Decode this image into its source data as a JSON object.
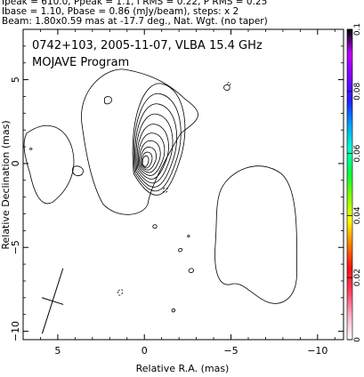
{
  "header": {
    "line1": "Ipeak = 610.0, Ppeak = 1.1, I RMS = 0.22, P RMS = 0.25",
    "line2": "Ibase = 1.10, Pbase = 0.86 (mJy/beam), steps: x 2",
    "line3": "Beam: 1.80x0.59 mas at -17.7 deg., Nat. Wgt. (no taper)"
  },
  "plot_title": "0742+103, 2005-11-07, VLBA 15.4 GHz",
  "program": "MOJAVE Program",
  "chart_data": {
    "type": "contour",
    "xlabel": "Relative R.A. (mas)",
    "ylabel": "Relative Declination (mas)",
    "xlim": [
      7,
      -11.5
    ],
    "ylim": [
      -10.5,
      8
    ],
    "x_ticks": [
      5,
      0,
      -5,
      -10
    ],
    "y_ticks": [
      5,
      0,
      -5,
      -10
    ],
    "colorbar": {
      "min": 0,
      "max": 0.1,
      "ticks": [
        "0",
        "0.02",
        "0.04",
        "0.06",
        "0.08",
        "0.1"
      ],
      "tick_values": [
        0,
        0.02,
        0.04,
        0.06,
        0.08,
        0.1
      ],
      "colors": [
        "#ffffff",
        "#ffb0c8",
        "#ff4060",
        "#ff1010",
        "#ff8000",
        "#ffff00",
        "#80ff00",
        "#00ff40",
        "#00ffd0",
        "#00a0ff",
        "#2020ff",
        "#8000ff",
        "#c000ff",
        "#000000"
      ]
    },
    "peak_position": [
      0,
      0
    ],
    "beam": {
      "major": 1.8,
      "minor": 0.59,
      "pa_deg": -17.7,
      "center": [
        5.3,
        -8.2
      ]
    }
  }
}
